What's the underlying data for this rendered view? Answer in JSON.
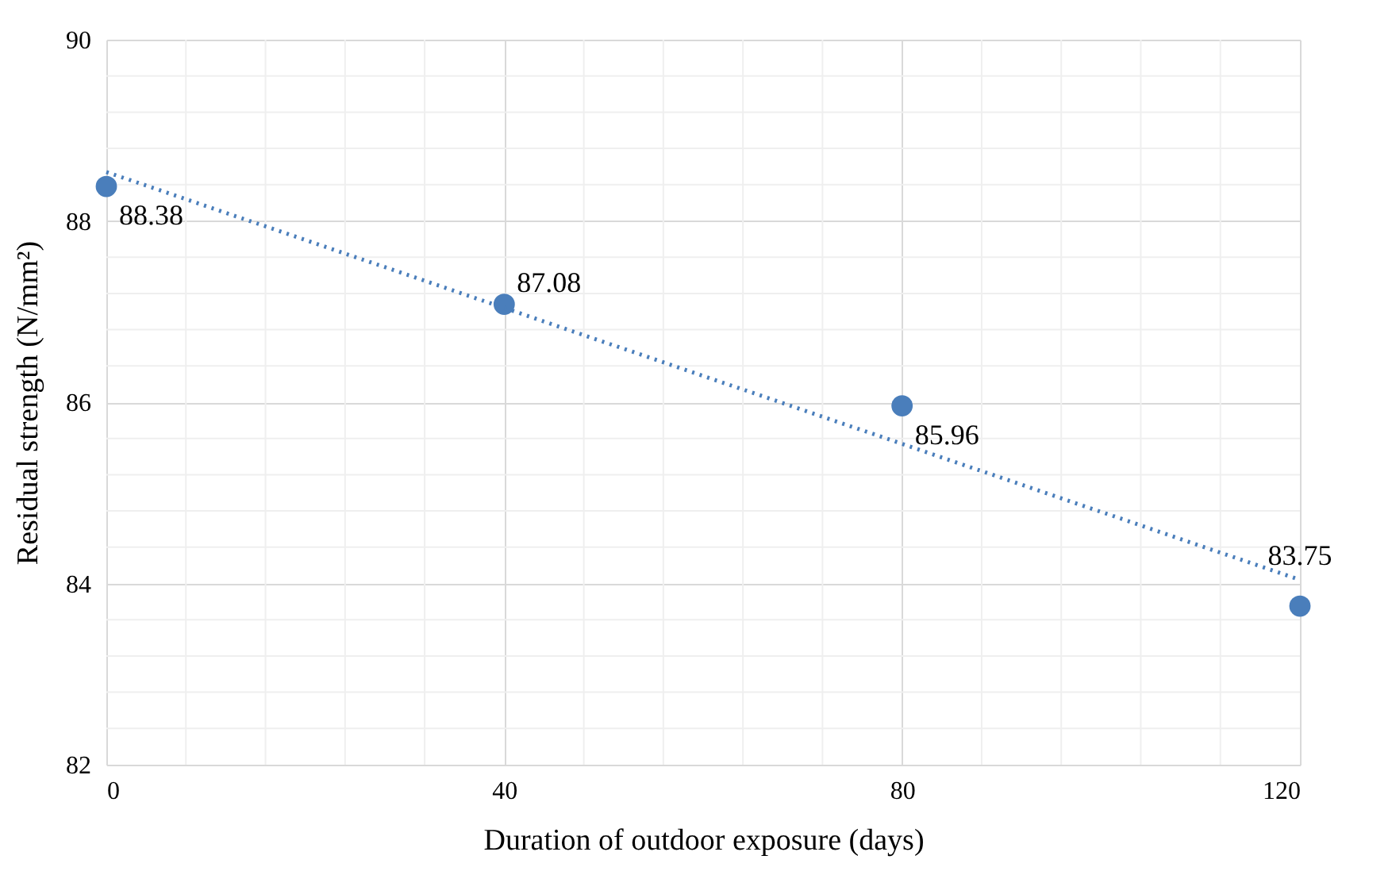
{
  "chart_data": {
    "type": "scatter",
    "xlabel": "Duration of outdoor exposure (days)",
    "ylabel": "Residual strength (N/mm²)",
    "x": [
      0,
      40,
      80,
      120
    ],
    "series": [
      {
        "color": "#4a7ebb",
        "values": [
          88.38,
          87.08,
          85.96,
          83.75
        ],
        "value_labels": [
          "88.38",
          "87.08",
          "85.96",
          "83.75"
        ]
      },
      {
        "type": "line",
        "color": "#4a7ebb",
        "x": [
          0,
          120
        ],
        "values": [
          88.54,
          84.04
        ],
        "line_style": "dotted",
        "marker": "none"
      }
    ],
    "marker": "circle",
    "xlim": [
      0,
      120
    ],
    "xticks": [
      0,
      40,
      80,
      120
    ],
    "ylim": [
      82,
      90
    ],
    "yticks": [
      82,
      84,
      86,
      88,
      90
    ],
    "grid": true
  }
}
